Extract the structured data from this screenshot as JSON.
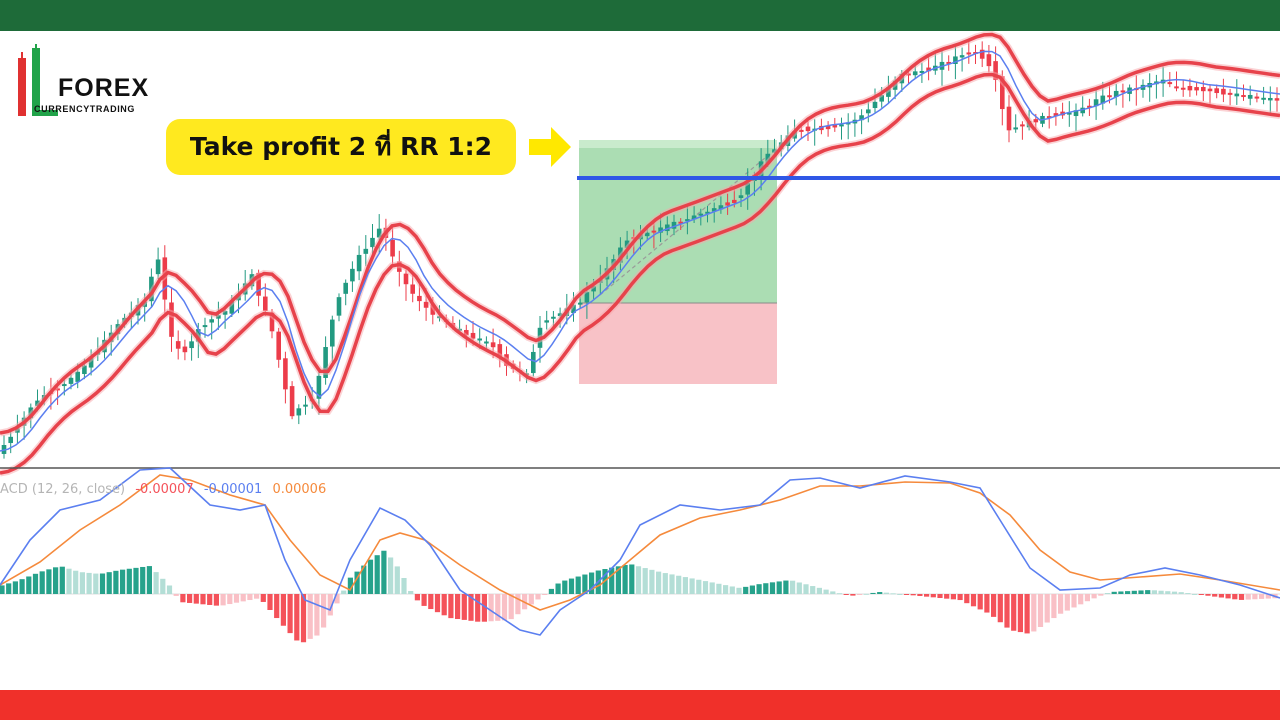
{
  "brand": {
    "name": "FOREX",
    "tagline": "CURRENCYTRADING",
    "colors": {
      "top_bar": "#1e6b39",
      "bottom_bar": "#f0302a",
      "accent_green": "#21a349",
      "accent_red": "#e03131"
    }
  },
  "callout": {
    "text": "Take profit 2 ที่ RR 1:2",
    "color": "#ffe91f",
    "icon": "arrow-right-icon"
  },
  "chart_data": [
    {
      "type": "candlestick",
      "title": "",
      "overlays": [
        "moving-average-envelope-upper",
        "moving-average-envelope-lower",
        "moving-average",
        "horizontal-level"
      ],
      "position_tool": {
        "reward_color": "#8fd29a",
        "risk_color": "#f7b7bd"
      },
      "colors": {
        "up": "#229a81",
        "down": "#ec3c4a",
        "envelope": "#e7424b",
        "ma": "#5b7ff0",
        "level": "#2f57e6"
      }
    },
    {
      "type": "macd",
      "legend": {
        "label": "ACD (12, 26, close)",
        "hist": "-0.00007",
        "macd": "-0.00001",
        "signal": "0.00006"
      },
      "colors": {
        "macd": "#5b7ff0",
        "signal": "#f58a3c",
        "pos_strong": "#26a28b",
        "pos_weak": "#b3ded6",
        "neg_strong": "#f4525a",
        "neg_weak": "#f9c0c6"
      }
    }
  ]
}
